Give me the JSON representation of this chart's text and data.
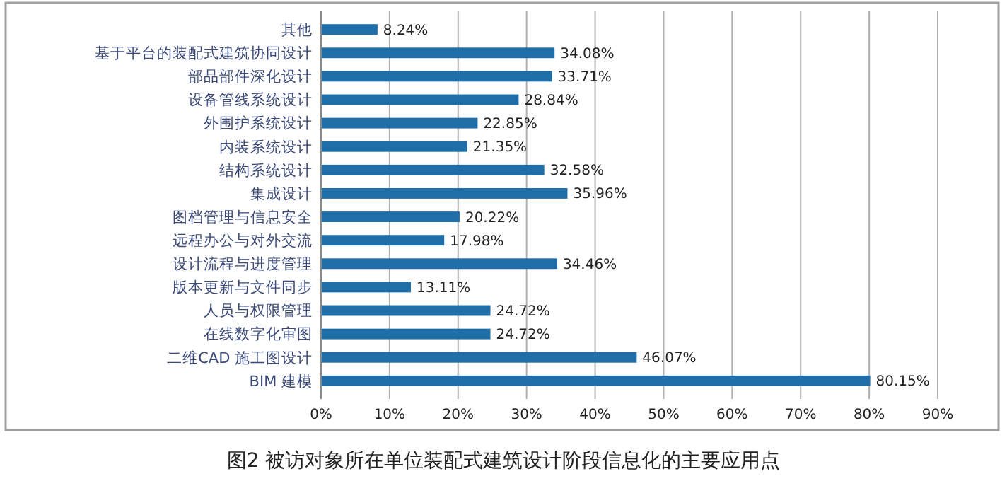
{
  "chart_data": {
    "type": "bar",
    "orientation": "horizontal",
    "title": "图2  被访对象所在单位装配式建筑设计阶段信息化的主要应用点",
    "categories": [
      "其他",
      "基于平台的装配式建筑协同设计",
      "部品部件深化设计",
      "设备管线系统设计",
      "外围护系统设计",
      "内装系统设计",
      "结构系统设计",
      "集成设计",
      "图档管理与信息安全",
      "远程办公与对外交流",
      "设计流程与进度管理",
      "版本更新与文件同步",
      "人员与权限管理",
      "在线数字化审图",
      "二维CAD 施工图设计",
      "BIM 建模"
    ],
    "values": [
      8.24,
      34.08,
      33.71,
      28.84,
      22.85,
      21.35,
      32.58,
      35.96,
      20.22,
      17.98,
      34.46,
      13.11,
      24.72,
      24.72,
      46.07,
      80.15
    ],
    "value_labels": [
      "8.24%",
      "34.08%",
      "33.71%",
      "28.84%",
      "22.85%",
      "21.35%",
      "32.58%",
      "35.96%",
      "20.22%",
      "17.98%",
      "34.46%",
      "13.11%",
      "24.72%",
      "24.72%",
      "46.07%",
      "80.15%"
    ],
    "color": "#1f6ea8",
    "xlim": [
      0,
      90
    ],
    "xticks": [
      {
        "value": 0,
        "label": "0%"
      },
      {
        "value": 10,
        "label": "10%"
      },
      {
        "value": 20,
        "label": "20%"
      },
      {
        "value": 30,
        "label": "30%"
      },
      {
        "value": 40,
        "label": "40%"
      },
      {
        "value": 50,
        "label": "50%"
      },
      {
        "value": 60,
        "label": "60%"
      },
      {
        "value": 70,
        "label": "70%"
      },
      {
        "value": 80,
        "label": "80%"
      },
      {
        "value": 90,
        "label": "90%"
      }
    ],
    "grid": "x"
  }
}
